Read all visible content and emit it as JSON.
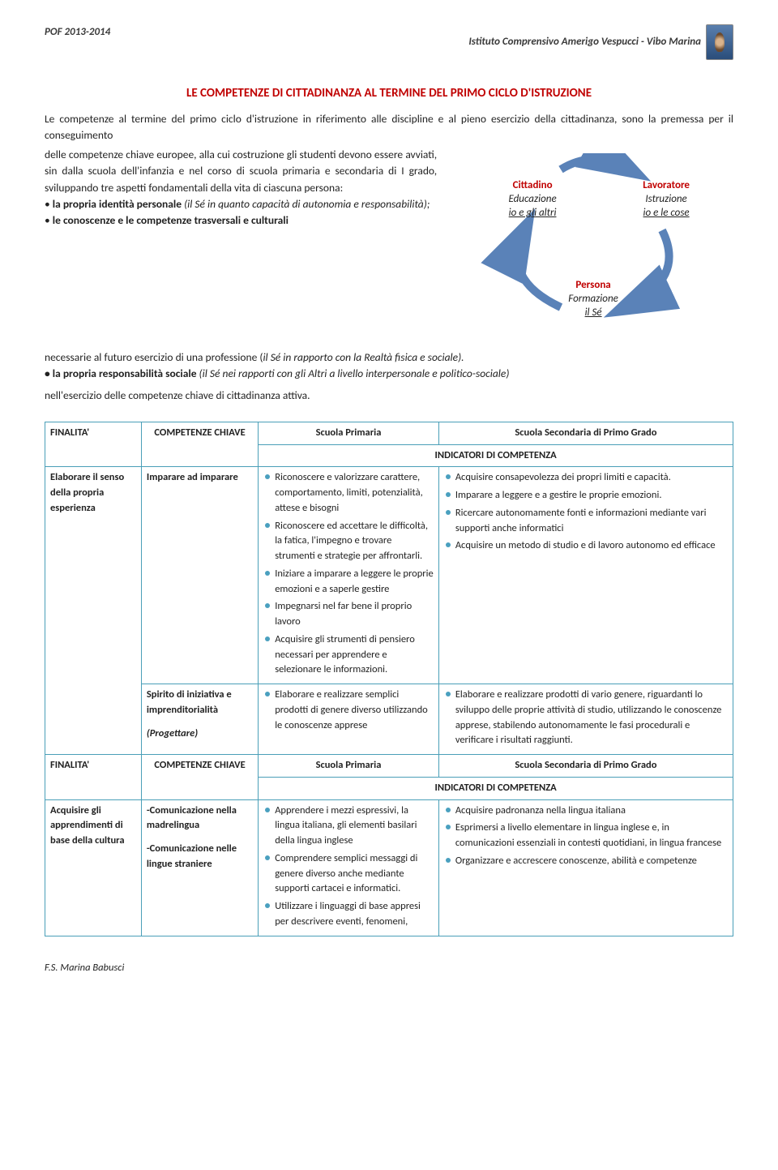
{
  "header": {
    "left": "POF 2013-2014",
    "right": "Istituto Comprensivo Amerigo Vespucci -  Vibo Marina"
  },
  "title": "LE COMPETENZE DI CITTADINANZA AL TERMINE DEL PRIMO CICLO D'ISTRUZIONE",
  "intro": "Le competenze al termine del primo ciclo d'istruzione in riferimento alle discipline e al pieno esercizio della cittadinanza, sono la premessa per il conseguimento",
  "leftcol": {
    "p1": "delle competenze chiave europee, alla cui costruzione gli studenti devono essere avviati, sin dalla scuola dell'infanzia e nel corso di scuola primaria e secondaria di I grado, sviluppando tre aspetti fondamentali della vita di ciascuna persona:",
    "b1_pre": "la propria identità personale",
    "b1_mid": " (il Sé in quanto capacità di autonomia e responsabilità);",
    "b2_pre": "le conoscenze e le competenze trasversali e culturali"
  },
  "after": {
    "p1_pre": "necessarie al futuro esercizio di una professione (",
    "p1_it": "il Sé in rapporto con la Realtà fisica e sociale).",
    "b3_pre": "la propria responsabilità sociale",
    "b3_mid": " (il Sé nei rapporti con gli Altri a livello interpersonale e politico-sociale)",
    "p2": " nell'esercizio delle competenze chiave di cittadinanza attiva."
  },
  "diagram": {
    "cittadino": {
      "t1": "Cittadino",
      "t2": "Educazione",
      "t3": "io e gli altri"
    },
    "lavoratore": {
      "t1": "Lavoratore",
      "t2": "Istruzione",
      "t3": "io e le cose"
    },
    "persona": {
      "t1": "Persona",
      "t2": "Formazione",
      "t3": "il Sé"
    },
    "arrow_color": "#5a82b8"
  },
  "table": {
    "headers": {
      "finalita": "FINALITA'",
      "competenze": "COMPETENZE CHIAVE",
      "primaria": "Scuola Primaria",
      "secondaria": "Scuola  Secondaria di Primo Grado",
      "indicatori": "INDICATORI DI COMPETENZA"
    },
    "row1": {
      "finalita": "Elaborare il senso della propria esperienza",
      "comp1": "Imparare ad imparare",
      "primaria1": [
        "Riconoscere  e valorizzare carattere,  comportamento,  limiti, potenzialità, attese e bisogni",
        "Riconoscere  ed accettare le difficoltà, la fatica, l'impegno e trovare strumenti e strategie per affrontarli.",
        "Iniziare a imparare a leggere le proprie emozioni e a saperle gestire",
        "Impegnarsi nel far bene il proprio lavoro",
        "Acquisire gli strumenti di pensiero necessari per apprendere e selezionare le informazioni."
      ],
      "secondaria1": [
        "Acquisire consapevolezza dei propri limiti e capacità.",
        "Imparare a leggere e a gestire le proprie emozioni.",
        "Ricercare autonomamente fonti e informazioni mediante vari supporti anche informatici",
        "Acquisire un metodo di studio e di lavoro autonomo ed efficace"
      ],
      "comp2a": "Spirito di iniziativa e imprenditorialità",
      "comp2b": "(Progettare)",
      "primaria2": [
        "Elaborare e realizzare semplici prodotti di genere diverso utilizzando le conoscenze apprese"
      ],
      "secondaria2": [
        "Elaborare e realizzare prodotti di vario genere, riguardanti lo sviluppo delle proprie attività di studio, utilizzando le conoscenze apprese, stabilendo autonomamente le fasi procedurali e verificare i risultati raggiunti."
      ]
    },
    "row2": {
      "finalita": "Acquisire gli apprendimenti di base della cultura",
      "comp_a": "-Comunicazione nella madrelingua",
      "comp_b": "-Comunicazione nelle lingue straniere",
      "primaria": [
        "Apprendere  i mezzi espressivi, la lingua italiana, gli elementi basilari della lingua inglese",
        "Comprendere semplici messaggi di genere diverso  anche mediante supporti cartacei e informatici.",
        "Utilizzare i  linguaggi di base appresi per  descrivere eventi, fenomeni,"
      ],
      "secondaria": [
        "Acquisire padronanza nella lingua italiana",
        "Esprimersi a livello elementare in lingua inglese e, in comunicazioni essenziali in contesti quotidiani, in lingua francese",
        "Organizzare e accrescere conoscenze, abilità e competenze"
      ]
    }
  },
  "footer": "F.S. Marina Babusci"
}
